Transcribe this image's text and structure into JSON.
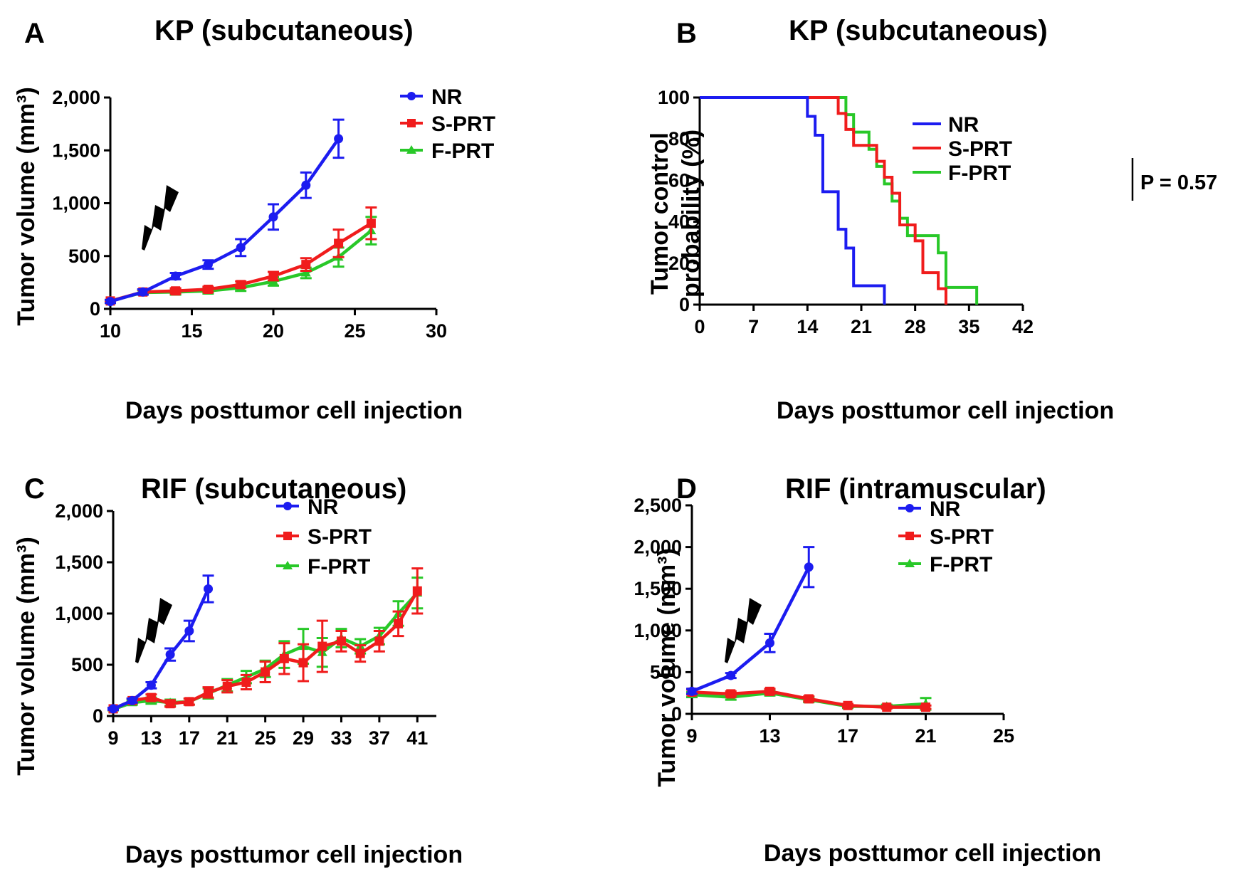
{
  "figure": {
    "panels": [
      {
        "letter": "A",
        "title": "KP (subcutaneous)"
      },
      {
        "letter": "B",
        "title": "KP (subcutaneous)"
      },
      {
        "letter": "C",
        "title": "RIF (subcutaneous)"
      },
      {
        "letter": "D",
        "title": "RIF (intramuscular)"
      }
    ]
  },
  "colors": {
    "NR": "#1c1cf0",
    "S-PRT": "#f01c1c",
    "F-PRT": "#28c828"
  },
  "chart_data": [
    {
      "type": "line",
      "title": "KP (subcutaneous)",
      "xlabel": "Days posttumor cell injection",
      "ylabel": "Tumor volume (mm³)",
      "xlim": [
        10,
        30
      ],
      "ylim": [
        0,
        2000
      ],
      "xticks": [
        "10",
        "15",
        "20",
        "25",
        "30"
      ],
      "yticks": [
        "0",
        "500",
        "1,000",
        "1,500",
        "2,000"
      ],
      "legend": [
        "NR",
        "S-PRT",
        "F-PRT"
      ],
      "irradiation_day": 10,
      "series": [
        {
          "name": "NR",
          "x": [
            10,
            12,
            14,
            16,
            18,
            20,
            22,
            24
          ],
          "values": [
            70,
            160,
            310,
            420,
            580,
            870,
            1170,
            1610
          ],
          "errors": [
            15,
            25,
            30,
            40,
            80,
            120,
            120,
            180
          ]
        },
        {
          "name": "S-PRT",
          "x": [
            10,
            12,
            14,
            16,
            18,
            20,
            22,
            24,
            26
          ],
          "values": [
            75,
            160,
            170,
            185,
            230,
            310,
            420,
            620,
            810
          ],
          "errors": [
            10,
            20,
            25,
            25,
            30,
            40,
            60,
            130,
            150
          ]
        },
        {
          "name": "F-PRT",
          "x": [
            10,
            12,
            14,
            16,
            18,
            20,
            22,
            24,
            26
          ],
          "values": [
            75,
            155,
            160,
            170,
            200,
            260,
            340,
            490,
            740
          ],
          "errors": [
            10,
            20,
            25,
            25,
            30,
            40,
            50,
            90,
            130
          ]
        }
      ]
    },
    {
      "type": "line",
      "subtype": "survival-step",
      "title": "KP (subcutaneous)",
      "xlabel": "Days posttumor cell injection",
      "ylabel": "Tumor control probability (%)",
      "xlim": [
        0,
        42
      ],
      "ylim": [
        0,
        100
      ],
      "xticks": [
        "0",
        "7",
        "14",
        "21",
        "28",
        "35",
        "42"
      ],
      "yticks": [
        "0",
        "20",
        "40",
        "60",
        "80",
        "100"
      ],
      "legend": [
        "NR",
        "S-PRT",
        "F-PRT"
      ],
      "pvalue": "P = 0.57",
      "series": [
        {
          "name": "NR",
          "x": [
            0,
            14,
            15,
            16,
            18,
            19,
            20,
            24
          ],
          "values": [
            100,
            90.9,
            81.8,
            54.5,
            36.4,
            27.3,
            9.1,
            0
          ]
        },
        {
          "name": "S-PRT",
          "x": [
            0,
            18,
            19,
            20,
            23,
            24,
            25,
            26,
            27,
            28,
            29,
            31,
            32
          ],
          "values": [
            100,
            92.3,
            84.6,
            76.9,
            69.2,
            61.5,
            53.8,
            38.5,
            38.5,
            30.8,
            15.4,
            7.7,
            0
          ]
        },
        {
          "name": "F-PRT",
          "x": [
            0,
            19,
            20,
            22,
            23,
            24,
            25,
            26,
            27,
            28,
            31,
            32,
            36
          ],
          "values": [
            100,
            91.7,
            83.3,
            75.0,
            66.7,
            58.3,
            50.0,
            41.7,
            33.3,
            33.3,
            25.0,
            8.3,
            0
          ]
        }
      ]
    },
    {
      "type": "line",
      "title": "RIF (subcutaneous)",
      "xlabel": "Days posttumor cell injection",
      "ylabel": "Tumor volume (mm³)",
      "xlim": [
        9,
        43
      ],
      "ylim": [
        0,
        2000
      ],
      "xticks": [
        "9",
        "13",
        "17",
        "21",
        "25",
        "29",
        "33",
        "37",
        "41"
      ],
      "yticks": [
        "0",
        "500",
        "1,000",
        "1,500",
        "2,000"
      ],
      "legend": [
        "NR",
        "S-PRT",
        "F-PRT"
      ],
      "irradiation_day": 10,
      "series": [
        {
          "name": "NR",
          "x": [
            9,
            11,
            13,
            15,
            17,
            19
          ],
          "values": [
            70,
            150,
            300,
            600,
            830,
            1240
          ],
          "errors": [
            10,
            20,
            30,
            60,
            100,
            130
          ]
        },
        {
          "name": "S-PRT",
          "x": [
            9,
            11,
            13,
            15,
            17,
            19,
            21,
            23,
            25,
            27,
            29,
            31,
            33,
            35,
            37,
            39,
            41
          ],
          "values": [
            70,
            150,
            180,
            120,
            140,
            230,
            290,
            330,
            430,
            560,
            520,
            680,
            730,
            610,
            730,
            900,
            1220
          ],
          "errors": [
            10,
            20,
            30,
            30,
            30,
            50,
            60,
            70,
            100,
            150,
            180,
            250,
            100,
            80,
            100,
            120,
            220
          ]
        },
        {
          "name": "F-PRT",
          "x": [
            9,
            11,
            13,
            15,
            17,
            19,
            21,
            23,
            25,
            27,
            29,
            31,
            33,
            35,
            37,
            39,
            41
          ],
          "values": [
            65,
            130,
            150,
            130,
            140,
            220,
            300,
            380,
            460,
            600,
            680,
            620,
            760,
            680,
            780,
            1000,
            1200
          ],
          "errors": [
            10,
            20,
            30,
            30,
            30,
            50,
            60,
            60,
            80,
            130,
            170,
            140,
            90,
            70,
            80,
            120,
            150
          ]
        }
      ]
    },
    {
      "type": "line",
      "title": "RIF (intramuscular)",
      "xlabel": "Days posttumor cell injection",
      "ylabel": "Tumor volume (mm³)",
      "xlim": [
        9,
        25
      ],
      "ylim": [
        0,
        2500
      ],
      "xticks": [
        "9",
        "13",
        "17",
        "21",
        "25"
      ],
      "yticks": [
        "0",
        "500",
        "1,000",
        "1,500",
        "2,000",
        "2,500"
      ],
      "legend": [
        "NR",
        "S-PRT",
        "F-PRT"
      ],
      "irradiation_day": 10,
      "series": [
        {
          "name": "NR",
          "x": [
            9,
            11,
            13,
            15
          ],
          "values": [
            270,
            460,
            850,
            1760
          ],
          "errors": [
            30,
            30,
            110,
            240
          ]
        },
        {
          "name": "S-PRT",
          "x": [
            9,
            11,
            13,
            15,
            17,
            19,
            21
          ],
          "values": [
            260,
            240,
            270,
            180,
            100,
            80,
            80
          ],
          "errors": [
            30,
            30,
            30,
            30,
            20,
            15,
            20
          ]
        },
        {
          "name": "F-PRT",
          "x": [
            9,
            11,
            13,
            15,
            17,
            19,
            21
          ],
          "values": [
            230,
            200,
            250,
            170,
            90,
            90,
            120
          ],
          "errors": [
            30,
            30,
            30,
            30,
            20,
            20,
            70
          ]
        }
      ]
    }
  ]
}
